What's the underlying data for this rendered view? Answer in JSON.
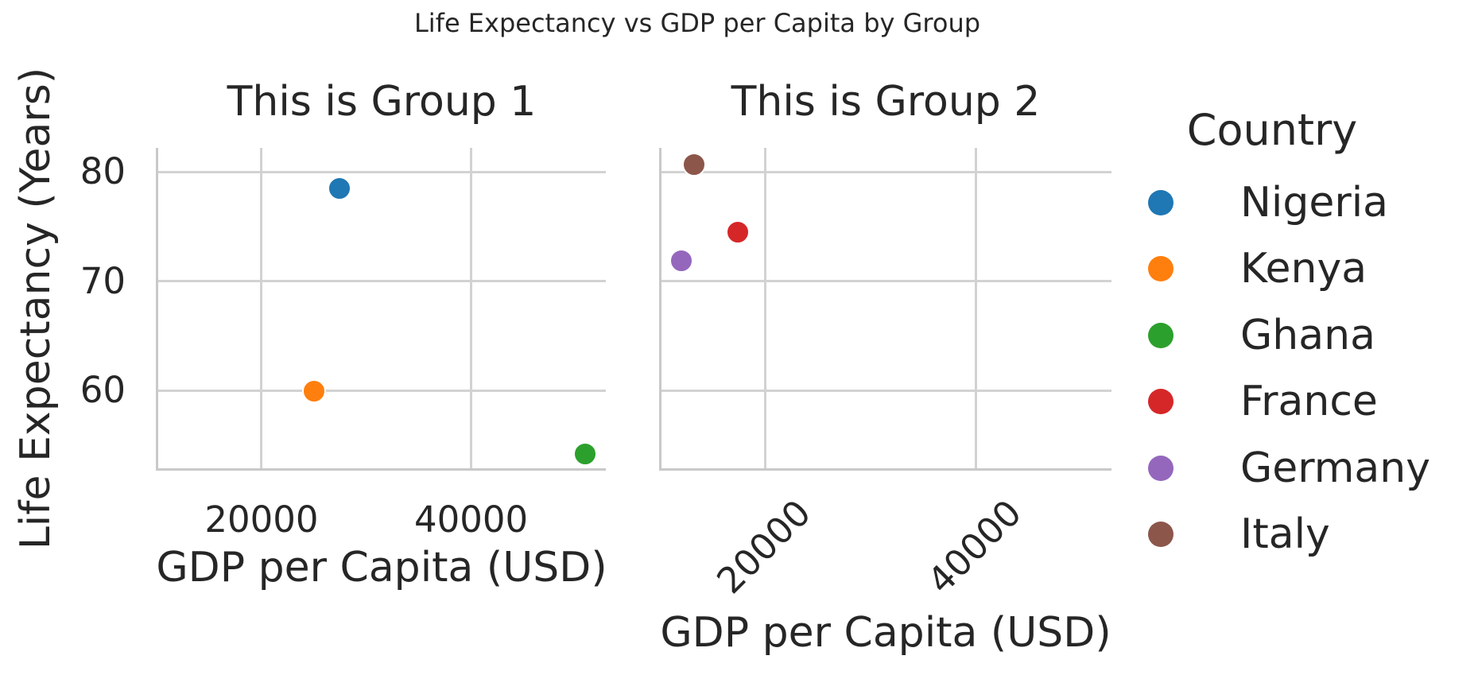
{
  "style": {
    "background": "#ffffff",
    "text_color": "#262626",
    "grid_color": "#d2d2d2",
    "spine_color": "#c9c9c9"
  },
  "chart_data": {
    "type": "scatter",
    "title": "Life Expectancy vs GDP per Capita by Group",
    "xlabel": "GDP per Capita (USD)",
    "ylabel": "Life Expectancy (Years)",
    "legend_title": "Country",
    "grid": true,
    "legend_position": "right",
    "xlim": [
      9990,
      52850
    ],
    "ylim": [
      52.8,
      82.2
    ],
    "xticks": {
      "values": [
        20000,
        40000
      ],
      "labels": [
        "20000",
        "40000"
      ]
    },
    "yticks": {
      "values": [
        60,
        70,
        80
      ],
      "labels": [
        "60",
        "70",
        "80"
      ]
    },
    "series_colors": {
      "Nigeria": "#1f77b4",
      "Kenya": "#ff7f0e",
      "Ghana": "#2ca02c",
      "France": "#d62728",
      "Germany": "#9467bd",
      "Italy": "#8c564b"
    },
    "legend_entries": [
      "Nigeria",
      "Kenya",
      "Ghana",
      "France",
      "Germany",
      "Italy"
    ],
    "facets": [
      {
        "title": "This is Group 1",
        "tick_rotation": 0,
        "points": [
          {
            "country": "Nigeria",
            "gdp_per_capita": 27400,
            "life_expectancy": 78.5
          },
          {
            "country": "Kenya",
            "gdp_per_capita": 25000,
            "life_expectancy": 59.9
          },
          {
            "country": "Ghana",
            "gdp_per_capita": 50900,
            "life_expectancy": 54.2
          }
        ]
      },
      {
        "title": "This is Group 2",
        "tick_rotation": 45,
        "points": [
          {
            "country": "France",
            "gdp_per_capita": 17400,
            "life_expectancy": 74.5
          },
          {
            "country": "Germany",
            "gdp_per_capita": 12000,
            "life_expectancy": 71.9
          },
          {
            "country": "Italy",
            "gdp_per_capita": 13200,
            "life_expectancy": 80.7
          }
        ]
      }
    ]
  }
}
